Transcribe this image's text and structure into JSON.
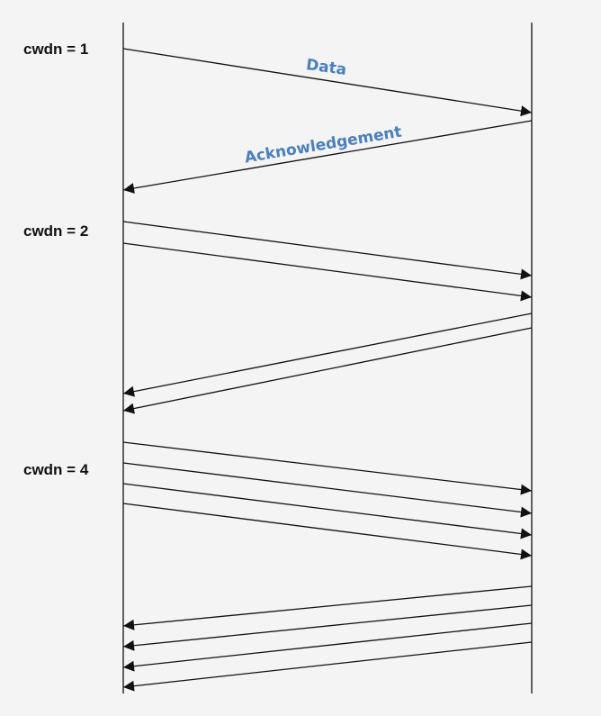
{
  "colors": {
    "background": "#f4f4f4",
    "line": "#111111",
    "message_label": "#4a7fc0"
  },
  "cwnd_labels": [
    "cwdn = 1",
    "cwdn = 2",
    "cwdn = 4"
  ],
  "message_labels": {
    "data": "Data",
    "ack": "Acknowledgement"
  },
  "rounds": [
    {
      "cwnd": 1,
      "data_segments": 1,
      "acks": 1
    },
    {
      "cwnd": 2,
      "data_segments": 2,
      "acks": 2
    },
    {
      "cwnd": 4,
      "data_segments": 4,
      "acks": 4
    }
  ]
}
